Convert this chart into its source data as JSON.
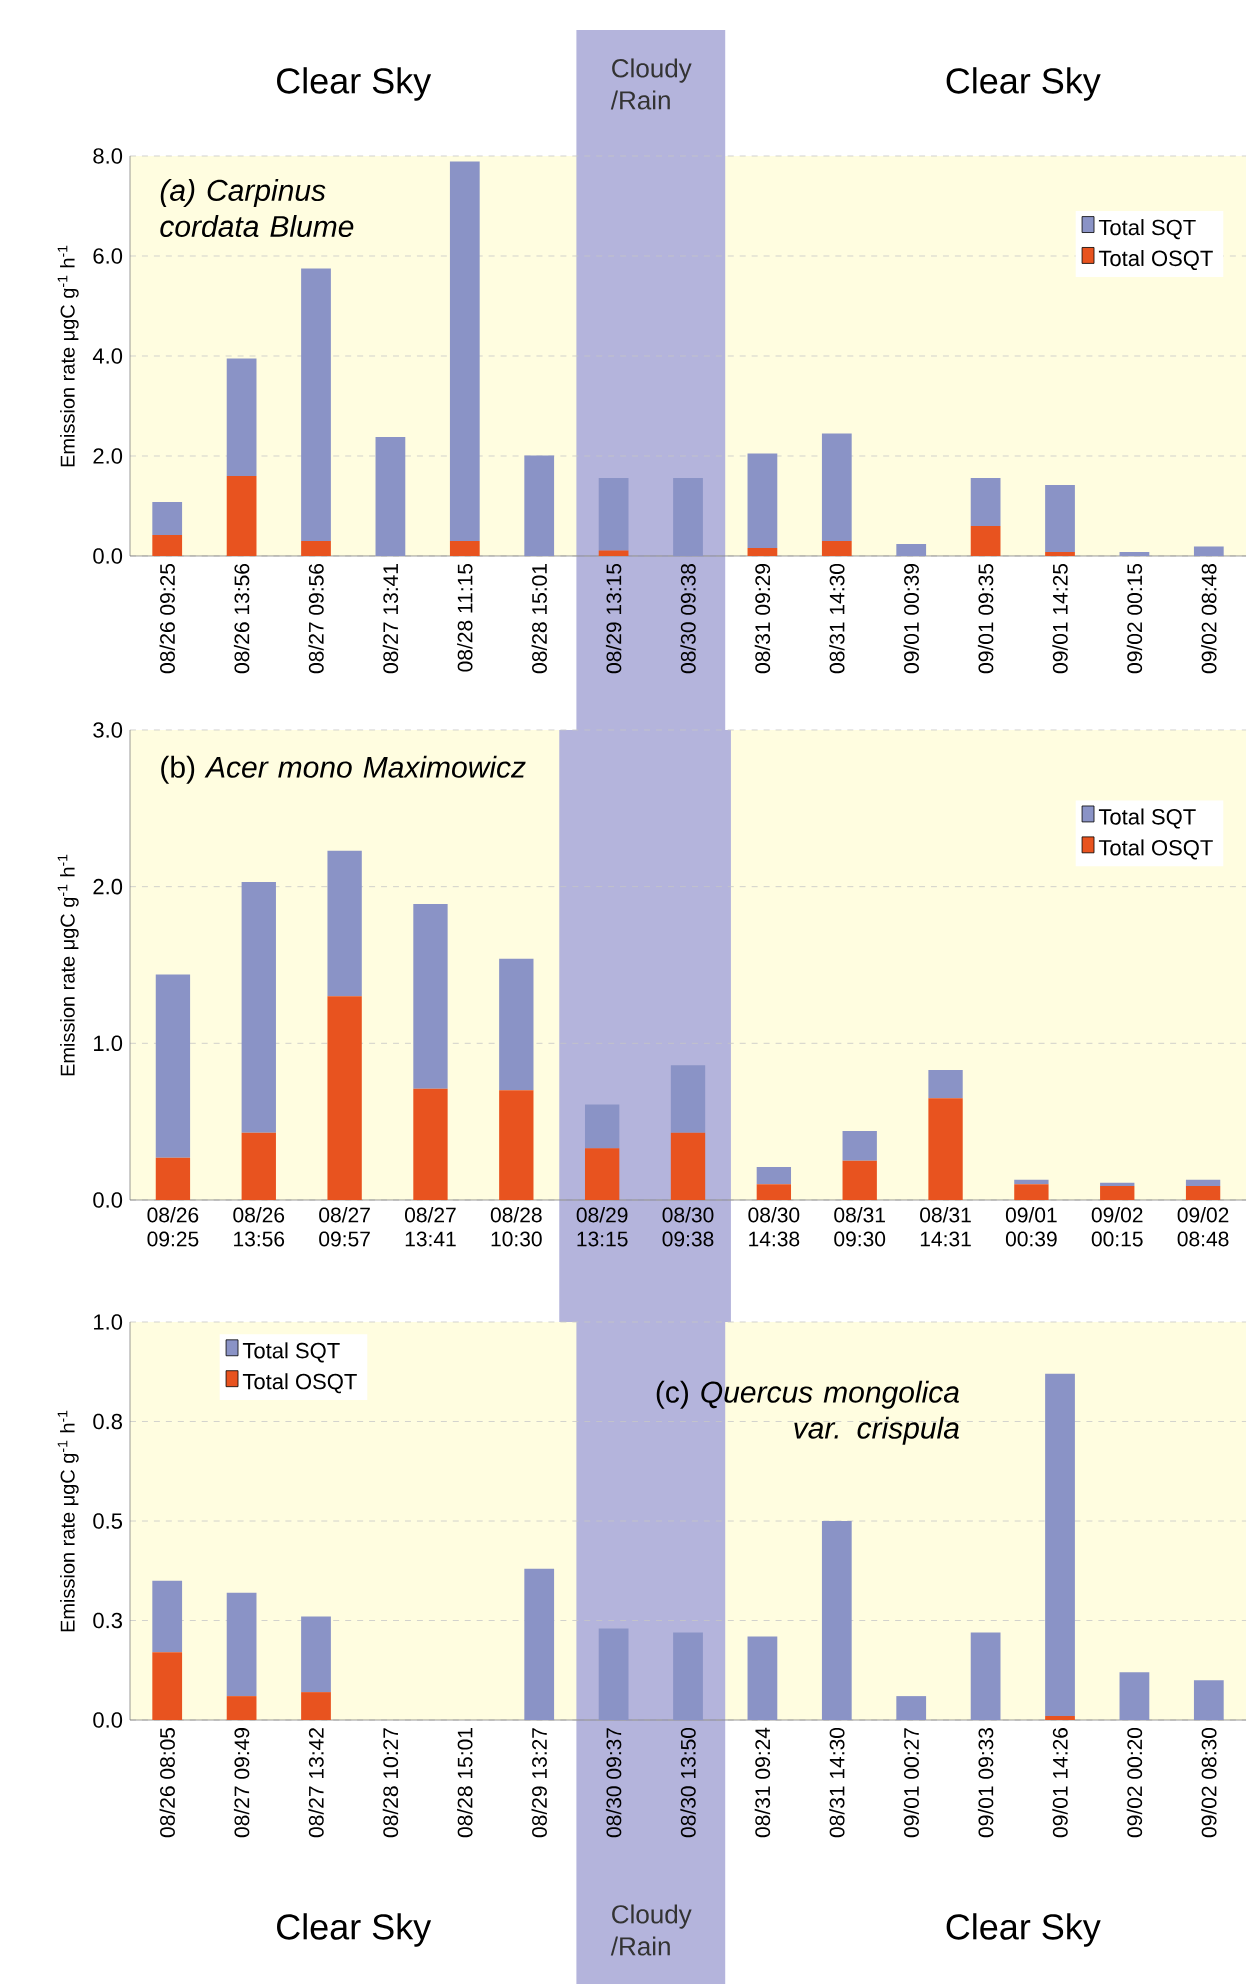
{
  "chart_data": [
    {
      "type": "bar",
      "title": "*(a) Carpinus cordata Blume*",
      "ylabel": "Emission rate μgC g$^{-1}$ h$^{-1}$",
      "stacked": true,
      "grid": "y",
      "legend": "right",
      "categories": [
        "08/26 09:25",
        "08/26 13:56",
        "08/27 09:56",
        "08/27 13:41",
        "08/28 11:15",
        "08/28 15:01",
        "08/29 13:15",
        "08/30 09:38",
        "08/31 09:29",
        "08/31 14:30",
        "09/01 00:39",
        "09/01 09:35",
        "09/01 14:25",
        "09/02 00:15",
        "09/02 08:48"
      ],
      "series": [
        {
          "name": "Total OSQT",
          "color": "#e8531f",
          "values": [
            0.42,
            1.6,
            0.3,
            0,
            0.3,
            0,
            0.11,
            0,
            0.16,
            0.3,
            0,
            0.6,
            0.08,
            0,
            0
          ]
        },
        {
          "name": "Total SQT",
          "color": "#8a93c6",
          "values": [
            0.66,
            2.35,
            5.45,
            2.38,
            7.59,
            2.01,
            1.45,
            1.56,
            1.89,
            2.15,
            0.24,
            0.96,
            1.34,
            0.08,
            0.19
          ]
        }
      ],
      "ylim": [
        0,
        8
      ],
      "yticks": [
        {
          "value": 0,
          "label": "0.0"
        },
        {
          "value": 2,
          "label": "2.0"
        },
        {
          "value": 4,
          "label": "4.0"
        },
        {
          "value": 6,
          "label": "6.0"
        },
        {
          "value": 8,
          "label": "8.0"
        }
      ],
      "bands": [
        {
          "axis": "x",
          "from": "08/29 13:15",
          "to": "08/30 09:38",
          "label": "Cloudy /Rain",
          "color": "#b4b4dc"
        }
      ],
      "annotations": [
        "Clear Sky",
        "Clear Sky"
      ]
    },
    {
      "type": "bar",
      "title": "(b) *Acer mono Maximowicz*",
      "ylabel": "Emission rate μgC g$^{-1}$ h$^{-1}$",
      "stacked": true,
      "grid": "y",
      "legend": "right",
      "categories": [
        "08/26 09:25",
        "08/26 13:56",
        "08/27 09:57",
        "08/27 13:41",
        "08/28 10:30",
        "08/29 13:15",
        "08/30 09:38",
        "08/30 14:38",
        "08/31 09:30",
        "08/31 14:31",
        "09/01 00:39",
        "09/02 00:15",
        "09/02 08:48"
      ],
      "series": [
        {
          "name": "Total OSQT",
          "color": "#e8531f",
          "values": [
            0.27,
            0.43,
            1.3,
            0.71,
            0.7,
            0.33,
            0.43,
            0.1,
            0.25,
            0.65,
            0.1,
            0.09,
            0.09
          ]
        },
        {
          "name": "Total SQT",
          "color": "#8a93c6",
          "values": [
            1.17,
            1.6,
            0.93,
            1.18,
            0.84,
            0.28,
            0.43,
            0.11,
            0.19,
            0.18,
            0.03,
            0.02,
            0.04
          ]
        }
      ],
      "ylim": [
        0,
        3
      ],
      "yticks": [
        {
          "value": 0,
          "label": "0.0"
        },
        {
          "value": 1,
          "label": "1.0"
        },
        {
          "value": 2,
          "label": "2.0"
        },
        {
          "value": 3,
          "label": "3.0"
        }
      ],
      "bands": [
        {
          "axis": "x",
          "from": "08/29 13:15",
          "to": "08/30 09:38",
          "color": "#b4b4dc"
        }
      ]
    },
    {
      "type": "bar",
      "title": "(c) *Quercus mongolica var. crispula*",
      "ylabel": "Emission rate μgC g$^{-1}$ h$^{-1}$",
      "stacked": true,
      "grid": "y",
      "legend": "top left",
      "categories": [
        "08/26 08:05",
        "08/27 09:49",
        "08/27 13:42",
        "08/28 10:27",
        "08/28 15:01",
        "08/29 13:27",
        "08/30 09:37",
        "08/30 13:50",
        "08/31 09:24",
        "08/31 14:30",
        "09/01 00:27",
        "09/01 09:33",
        "09/01 14:26",
        "09/02 00:20",
        "09/02 08:30"
      ],
      "series": [
        {
          "name": "Total OSQT",
          "color": "#e8531f",
          "values": [
            0.17,
            0.06,
            0.07,
            0,
            0,
            0,
            0,
            0,
            0,
            0,
            0,
            0,
            0.01,
            0,
            0
          ]
        },
        {
          "name": "Total SQT",
          "color": "#8a93c6",
          "values": [
            0.18,
            0.26,
            0.19,
            0,
            0,
            0.38,
            0.23,
            0.22,
            0.21,
            0.5,
            0.06,
            0.22,
            0.86,
            0.12,
            0.1
          ]
        }
      ],
      "ylim": [
        0,
        1
      ],
      "yticks": [
        {
          "value": 0,
          "label": "0.0"
        },
        {
          "value": 0.25,
          "label": "0.3"
        },
        {
          "value": 0.5,
          "label": "0.5"
        },
        {
          "value": 0.75,
          "label": "0.8"
        },
        {
          "value": 1,
          "label": "1.0"
        }
      ],
      "bands": [
        {
          "axis": "x",
          "from": "08/30 09:37",
          "to": "08/30 13:50",
          "label": "Cloudy /Rain",
          "color": "#b4b4dc"
        }
      ],
      "annotations": [
        "Clear Sky",
        "Clear Sky"
      ]
    }
  ]
}
